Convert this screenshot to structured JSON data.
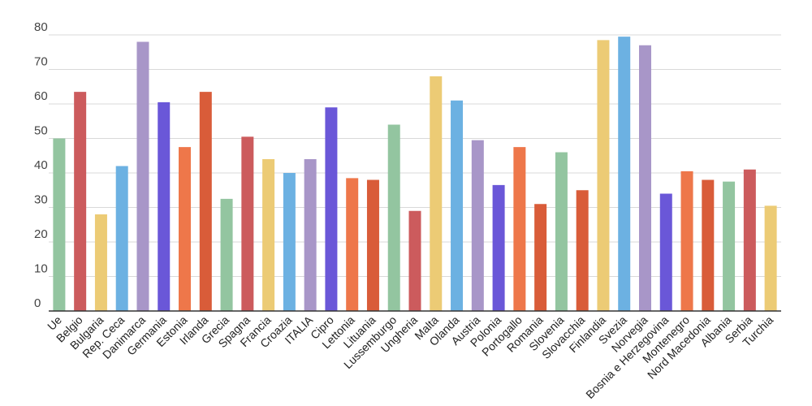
{
  "chart_data": {
    "type": "bar",
    "title": "",
    "xlabel": "",
    "ylabel": "",
    "ylim": [
      0,
      80
    ],
    "yticks": [
      0,
      10,
      20,
      30,
      40,
      50,
      60,
      70,
      80
    ],
    "grid": true,
    "legend": "none",
    "categories": [
      "Ue",
      "Belgio",
      "Bulgaria",
      "Rep. Ceca",
      "Danimarca",
      "Germania",
      "Estonia",
      "Irlanda",
      "Grecia",
      "Spagna",
      "Francia",
      "Croazia",
      "ITALIA",
      "Cipro",
      "Lettonia",
      "Lituania",
      "Lussemburgo",
      "Ungheria",
      "Malta",
      "Olanda",
      "Austria",
      "Polonia",
      "Portogallo",
      "Romania",
      "Slovenia",
      "Slovacchia",
      "Finlandia",
      "Svezia",
      "Norvegia",
      "Bosnia e Herzegovina",
      "Montenegro",
      "Nord Macedonia",
      "Albania",
      "Serbia",
      "Turchia"
    ],
    "values": [
      50,
      63.5,
      28,
      42,
      78,
      60.5,
      47.5,
      63.5,
      32.5,
      50.5,
      44,
      40,
      44,
      59,
      38.5,
      38,
      54,
      29,
      68,
      61,
      49.5,
      36.5,
      47.5,
      31,
      46,
      35,
      78.5,
      79.5,
      77,
      34,
      40.5,
      38,
      37.5,
      41,
      30.5
    ],
    "colors": [
      "#93c5a0",
      "#cc5b5d",
      "#eccb75",
      "#6cb1e2",
      "#a896c8",
      "#6a57d8",
      "#ee774a",
      "#d95c39",
      "#93c5a0",
      "#cc5b5d",
      "#eccb75",
      "#6cb1e2",
      "#a896c8",
      "#6a57d8",
      "#ee774a",
      "#d95c39",
      "#93c5a0",
      "#cc5b5d",
      "#eccb75",
      "#6cb1e2",
      "#a896c8",
      "#6a57d8",
      "#ee774a",
      "#d95c39",
      "#93c5a0",
      "#d95c39",
      "#eccb75",
      "#6cb1e2",
      "#a896c8",
      "#6a57d8",
      "#ee774a",
      "#d95c39",
      "#93c5a0",
      "#cc5b5d",
      "#eccb75"
    ]
  }
}
